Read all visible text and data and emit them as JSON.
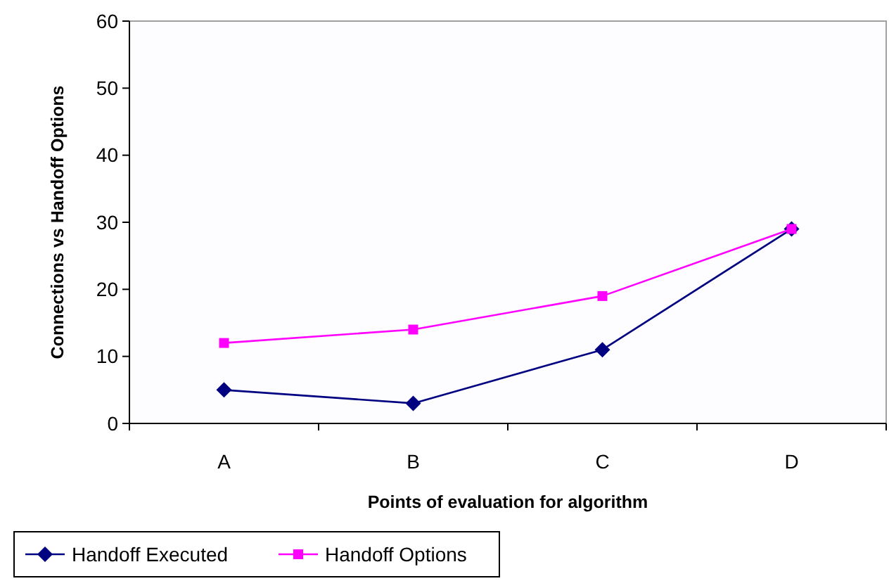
{
  "chart_data": {
    "type": "line",
    "xlabel": "Points of evaluation for algorithm",
    "ylabel": "Connections vs Handoff Options",
    "categories": [
      "A",
      "B",
      "C",
      "D"
    ],
    "series": [
      {
        "name": "Handoff Executed",
        "color": "#000080",
        "marker": "diamond",
        "values": [
          5,
          3,
          11,
          29
        ]
      },
      {
        "name": "Handoff Options",
        "color": "#ff00ff",
        "marker": "square",
        "values": [
          12,
          14,
          19,
          29
        ]
      }
    ],
    "ylim": [
      0,
      60
    ],
    "yticks": [
      0,
      10,
      20,
      30,
      40,
      50,
      60
    ],
    "grid": false,
    "legend": "bottom left",
    "line_style": "solid"
  }
}
